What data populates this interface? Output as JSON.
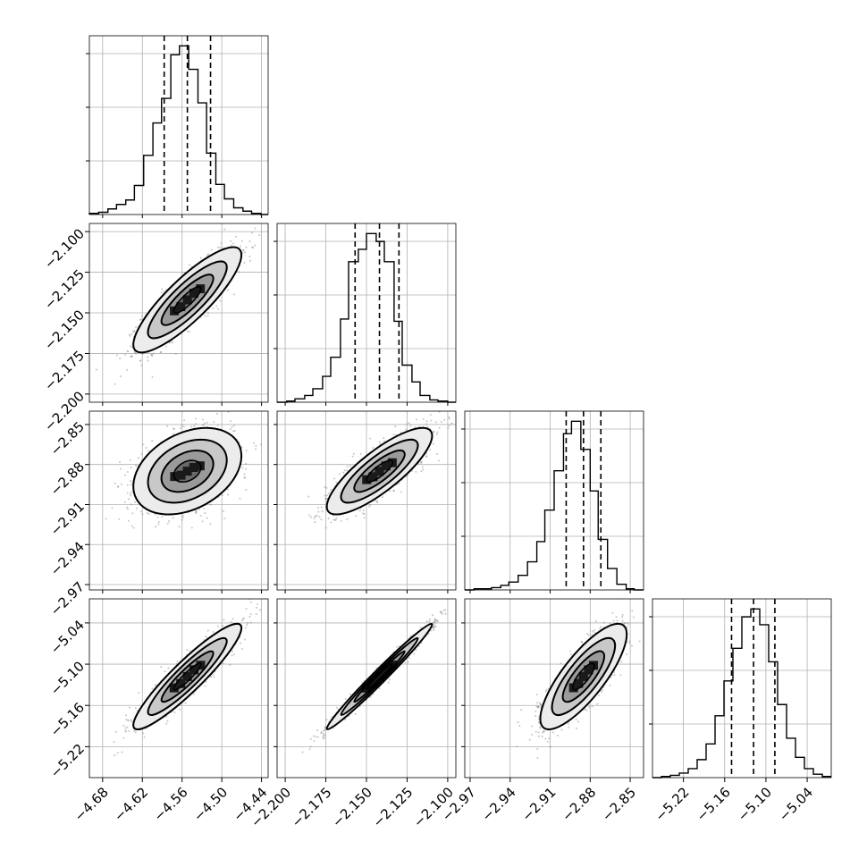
{
  "chart_data": {
    "type": "corner",
    "parameters": [
      {
        "xticks": [
          "−4.68",
          "−4.62",
          "−4.56",
          "−4.50",
          "−4.44"
        ],
        "xtick_values": [
          -4.68,
          -4.62,
          -4.56,
          -4.5,
          -4.44
        ],
        "xlim": [
          -4.7,
          -4.43
        ],
        "quantiles": [
          -4.587,
          -4.552,
          -4.517
        ],
        "hist_bins": [
          -4.7,
          -4.686,
          -4.672,
          -4.659,
          -4.645,
          -4.632,
          -4.618,
          -4.604,
          -4.591,
          -4.577,
          -4.564,
          -4.55,
          -4.536,
          -4.523,
          -4.509,
          -4.496,
          -4.482,
          -4.468,
          -4.455,
          -4.441,
          -4.43
        ],
        "hist_counts": [
          1,
          2,
          5,
          9,
          13,
          26,
          53,
          82,
          104,
          143,
          151,
          130,
          100,
          55,
          27,
          14,
          6,
          3,
          1,
          0
        ]
      },
      {
        "yticks": [
          "−2.100",
          "−2.125",
          "−2.150",
          "−2.175",
          "−2.200"
        ],
        "ytick_values": [
          -2.1,
          -2.125,
          -2.15,
          -2.175,
          -2.2
        ],
        "xticks": [
          "−2.200",
          "−2.175",
          "−2.150",
          "−2.125",
          "−2.100"
        ],
        "xtick_values": [
          -2.2,
          -2.175,
          -2.15,
          -2.125,
          -2.1
        ],
        "lim": [
          -2.205,
          -2.095
        ],
        "quantiles": [
          -2.157,
          -2.142,
          -2.13
        ],
        "hist_bins": [
          -2.205,
          -2.199,
          -2.194,
          -2.188,
          -2.183,
          -2.177,
          -2.172,
          -2.166,
          -2.161,
          -2.155,
          -2.15,
          -2.144,
          -2.139,
          -2.133,
          -2.128,
          -2.122,
          -2.117,
          -2.111,
          -2.106,
          -2.1,
          -2.095
        ],
        "hist_counts": [
          0,
          1,
          3,
          6,
          12,
          23,
          40,
          74,
          125,
          136,
          150,
          143,
          125,
          72,
          33,
          18,
          6,
          2,
          1,
          0
        ]
      },
      {
        "yticks": [
          "−2.85",
          "−2.88",
          "−2.91",
          "−2.94",
          "−2.97"
        ],
        "ytick_values": [
          -2.85,
          -2.88,
          -2.91,
          -2.94,
          -2.97
        ],
        "xticks": [
          "−2.97",
          "−2.94",
          "−2.91",
          "−2.88",
          "−2.85"
        ],
        "xtick_values": [
          -2.97,
          -2.94,
          -2.91,
          -2.88,
          -2.85
        ],
        "lim": [
          -2.974,
          -2.84
        ],
        "quantiles": [
          -2.898,
          -2.885,
          -2.872
        ],
        "hist_bins": [
          -2.974,
          -2.967,
          -2.961,
          -2.954,
          -2.947,
          -2.941,
          -2.934,
          -2.927,
          -2.92,
          -2.914,
          -2.907,
          -2.9,
          -2.894,
          -2.887,
          -2.88,
          -2.874,
          -2.867,
          -2.86,
          -2.853,
          -2.847,
          -2.84
        ],
        "hist_counts": [
          0,
          1,
          1,
          2,
          4,
          7,
          13,
          25,
          43,
          71,
          106,
          139,
          150,
          125,
          88,
          45,
          19,
          5,
          1,
          0
        ]
      },
      {
        "yticks": [
          "−5.04",
          "−5.10",
          "−5.16",
          "−5.22"
        ],
        "ytick_values": [
          -5.04,
          -5.1,
          -5.16,
          -5.22
        ],
        "xticks": [
          "−5.22",
          "−5.16",
          "−5.10",
          "−5.04"
        ],
        "xtick_values": [
          -5.22,
          -5.16,
          -5.1,
          -5.04
        ],
        "lim": [
          -5.265,
          -5.005
        ],
        "quantiles": [
          -5.15,
          -5.118,
          -5.087
        ],
        "hist_bins": [
          -5.265,
          -5.252,
          -5.239,
          -5.226,
          -5.213,
          -5.2,
          -5.187,
          -5.174,
          -5.161,
          -5.148,
          -5.135,
          -5.122,
          -5.109,
          -5.096,
          -5.083,
          -5.07,
          -5.057,
          -5.044,
          -5.031,
          -5.018,
          -5.005
        ],
        "hist_counts": [
          0,
          1,
          2,
          4,
          8,
          16,
          30,
          55,
          86,
          115,
          143,
          150,
          136,
          103,
          65,
          35,
          18,
          8,
          3,
          1
        ]
      }
    ],
    "pairs": [
      {
        "row": 1,
        "col": 0,
        "mean": [
          -4.552,
          -2.142
        ],
        "std": [
          0.034,
          0.0135
        ],
        "corr": 0.85
      },
      {
        "row": 2,
        "col": 0,
        "mean": [
          -4.552,
          -2.885
        ],
        "std": [
          0.034,
          0.0135
        ],
        "corr": 0.35
      },
      {
        "row": 2,
        "col": 1,
        "mean": [
          -2.142,
          -2.885
        ],
        "std": [
          0.0135,
          0.0135
        ],
        "corr": 0.82
      },
      {
        "row": 3,
        "col": 0,
        "mean": [
          -4.552,
          -5.118
        ],
        "std": [
          0.034,
          0.032
        ],
        "corr": 0.92
      },
      {
        "row": 3,
        "col": 1,
        "mean": [
          -2.142,
          -5.118
        ],
        "std": [
          0.0135,
          0.032
        ],
        "corr": 0.985
      },
      {
        "row": 3,
        "col": 2,
        "mean": [
          -2.885,
          -5.118
        ],
        "std": [
          0.0135,
          0.032
        ],
        "corr": 0.8
      }
    ],
    "grid": true
  }
}
